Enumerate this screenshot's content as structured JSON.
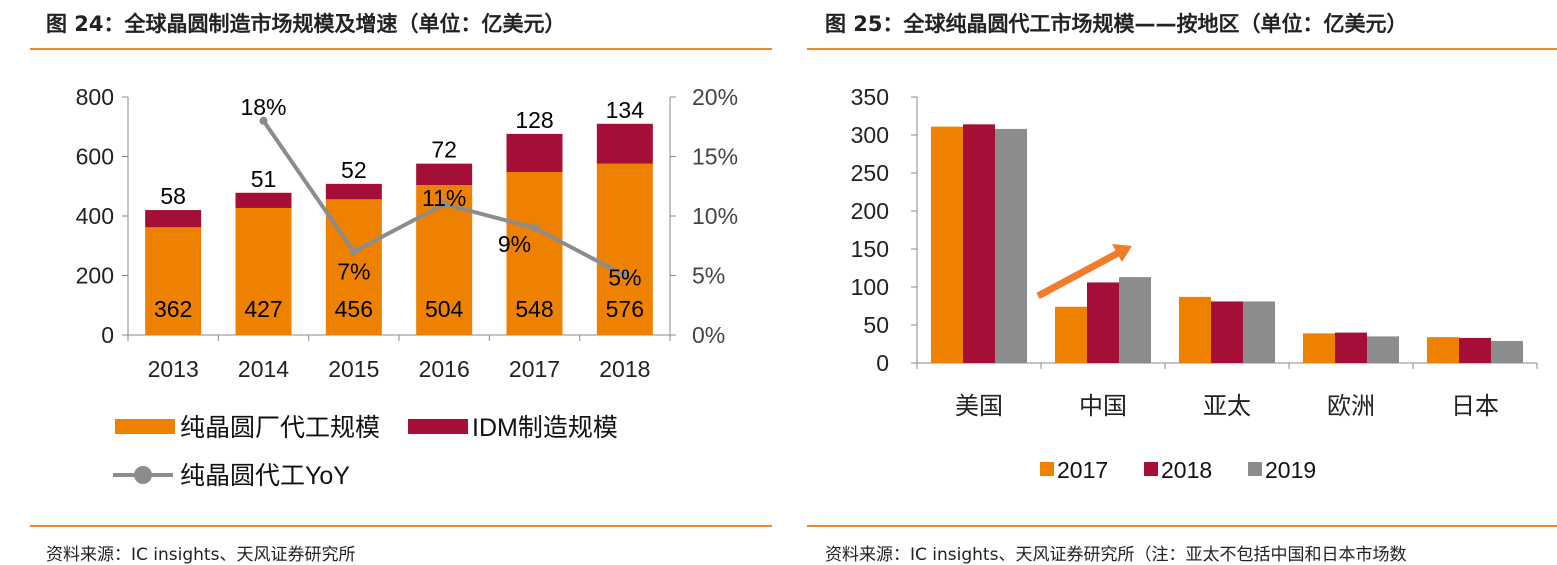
{
  "left_figure": {
    "title": "图 24：全球晶圆制造市场规模及增速（单位：亿美元）",
    "source": "资料来源：IC insights、天风证券研究所"
  },
  "right_figure": {
    "title": "图 25：全球纯晶圆代工市场规模——按地区（单位：亿美元）",
    "source": "资料来源：IC insights、天风证券研究所（注：亚太不包括中国和日本市场数"
  },
  "colors": {
    "orange": "#EE8100",
    "crimson": "#A50E36",
    "gray": "#8C8C8C",
    "line_gray": "#8C8C8C",
    "rule_orange": "#E98A2F",
    "arrow_orange": "#F07D2C"
  },
  "chart_data": [
    {
      "type": "bar",
      "stacked": true,
      "categories": [
        "2013",
        "2014",
        "2015",
        "2016",
        "2017",
        "2018"
      ],
      "series": [
        {
          "name": "纯晶圆厂代工规模",
          "values": [
            362,
            427,
            456,
            504,
            548,
            576
          ],
          "color": "#EE8100",
          "labels": [
            "362",
            "427",
            "456",
            "504",
            "548",
            "576"
          ]
        },
        {
          "name": "IDM制造规模",
          "values": [
            58,
            51,
            52,
            72,
            128,
            134
          ],
          "color": "#A50E36",
          "labels": [
            "58",
            "51",
            "52",
            "72",
            "128",
            "134"
          ]
        }
      ],
      "line_series": {
        "name": "纯晶圆代工YoY",
        "axis": "right",
        "x": [
          "2014",
          "2015",
          "2016",
          "2017",
          "2018"
        ],
        "values": [
          18,
          7,
          11,
          9,
          5
        ],
        "labels": [
          "18%",
          "7%",
          "11%",
          "9%",
          "5%"
        ],
        "color": "#8C8C8C"
      },
      "y_left": {
        "min": 0,
        "max": 800,
        "ticks": [
          0,
          200,
          400,
          600,
          800
        ],
        "tick_labels": [
          "0",
          "200",
          "400",
          "600",
          "800"
        ]
      },
      "y_right": {
        "min": 0,
        "max": 20,
        "ticks": [
          0,
          5,
          10,
          15,
          20
        ],
        "tick_labels": [
          "0%",
          "5%",
          "10%",
          "15%",
          "20%"
        ]
      },
      "legend": [
        {
          "label": "纯晶圆厂代工规模",
          "kind": "bar",
          "color": "#EE8100"
        },
        {
          "label": "IDM制造规模",
          "kind": "bar",
          "color": "#A50E36"
        },
        {
          "label": "纯晶圆代工YoY",
          "kind": "line",
          "color": "#8C8C8C"
        }
      ],
      "legend_position": "bottom",
      "grid": false
    },
    {
      "type": "bar",
      "categories": [
        "美国",
        "中国",
        "亚太",
        "欧洲",
        "日本"
      ],
      "series": [
        {
          "name": "2017",
          "values": [
            311,
            74,
            87,
            39,
            34
          ],
          "color": "#EE8100"
        },
        {
          "name": "2018",
          "values": [
            314,
            106,
            81,
            40,
            33
          ],
          "color": "#A50E36"
        },
        {
          "name": "2019",
          "values": [
            308,
            113,
            81,
            35,
            29
          ],
          "color": "#8C8C8C"
        }
      ],
      "y": {
        "min": 0,
        "max": 350,
        "ticks": [
          0,
          50,
          100,
          150,
          200,
          250,
          300,
          350
        ],
        "tick_labels": [
          "0",
          "50",
          "100",
          "150",
          "200",
          "250",
          "300",
          "350"
        ]
      },
      "annotation": "upward-trend-arrow",
      "legend": [
        {
          "label": "2017",
          "color": "#EE8100"
        },
        {
          "label": "2018",
          "color": "#A50E36"
        },
        {
          "label": "2019",
          "color": "#8C8C8C"
        }
      ],
      "legend_position": "bottom",
      "grid": false
    }
  ]
}
